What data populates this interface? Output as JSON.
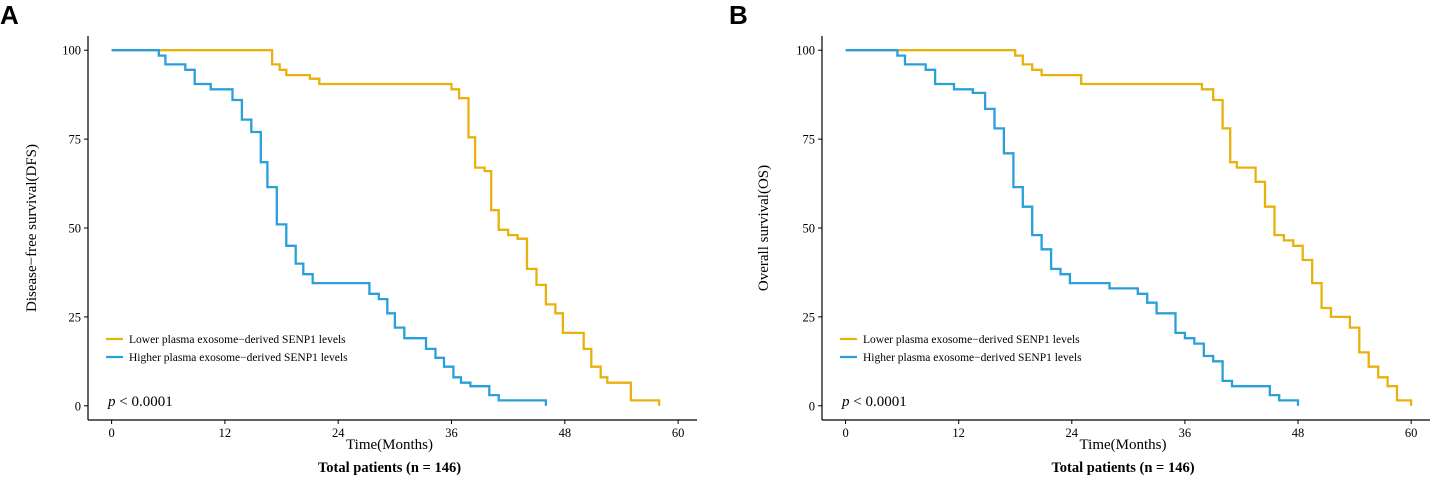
{
  "figure": {
    "p_value_symbol": "p",
    "p_value_text": "< 0.0001",
    "colors": {
      "lower": "#E8B10E",
      "higher": "#2AA0DA",
      "axis": "#000000"
    }
  },
  "chart_data": [
    {
      "type": "line",
      "subtype": "kaplan-meier step",
      "panel_label": "A",
      "ylabel": "Disease−free survival(DFS)",
      "xlabel": "Time(Months)",
      "caption": "Total patients (n = 146)",
      "xlim": [
        -2.5,
        62
      ],
      "ylim": [
        -4,
        104
      ],
      "xticks": [
        0,
        12,
        24,
        36,
        48,
        60
      ],
      "yticks": [
        0,
        25,
        50,
        75,
        100
      ],
      "legend_position": "lower-left",
      "series": [
        {
          "name": "Lower plasma exosome−derived SENP1 levels",
          "color_key": "lower",
          "points": [
            [
              0,
              100
            ],
            [
              17,
              100
            ],
            [
              17,
              96
            ],
            [
              17.8,
              96
            ],
            [
              17.8,
              94.5
            ],
            [
              18.5,
              94.5
            ],
            [
              18.5,
              93
            ],
            [
              21,
              93
            ],
            [
              21,
              92
            ],
            [
              22,
              92
            ],
            [
              22,
              90.5
            ],
            [
              36,
              90.5
            ],
            [
              36,
              89
            ],
            [
              36.8,
              89
            ],
            [
              36.8,
              86.5
            ],
            [
              37.8,
              86.5
            ],
            [
              37.8,
              75.5
            ],
            [
              38.5,
              75.5
            ],
            [
              38.5,
              67
            ],
            [
              39.5,
              67
            ],
            [
              39.5,
              66
            ],
            [
              40.2,
              66
            ],
            [
              40.2,
              55
            ],
            [
              41,
              55
            ],
            [
              41,
              49.5
            ],
            [
              42,
              49.5
            ],
            [
              42,
              48
            ],
            [
              43,
              48
            ],
            [
              43,
              47
            ],
            [
              44,
              47
            ],
            [
              44,
              38.5
            ],
            [
              45,
              38.5
            ],
            [
              45,
              34
            ],
            [
              46,
              34
            ],
            [
              46,
              28.5
            ],
            [
              47,
              28.5
            ],
            [
              47,
              26
            ],
            [
              47.8,
              26
            ],
            [
              47.8,
              20.5
            ],
            [
              50,
              20.5
            ],
            [
              50,
              16
            ],
            [
              50.8,
              16
            ],
            [
              50.8,
              11
            ],
            [
              51.8,
              11
            ],
            [
              51.8,
              8
            ],
            [
              52.5,
              8
            ],
            [
              52.5,
              6.5
            ],
            [
              55,
              6.5
            ],
            [
              55,
              1.5
            ],
            [
              58,
              1.5
            ],
            [
              58,
              0
            ]
          ]
        },
        {
          "name": "Higher plasma exosome−derived SENP1 levels",
          "color_key": "higher",
          "points": [
            [
              0,
              100
            ],
            [
              5,
              100
            ],
            [
              5,
              98.5
            ],
            [
              5.7,
              98.5
            ],
            [
              5.7,
              96
            ],
            [
              7.8,
              96
            ],
            [
              7.8,
              94.5
            ],
            [
              8.8,
              94.5
            ],
            [
              8.8,
              90.5
            ],
            [
              10.5,
              90.5
            ],
            [
              10.5,
              89
            ],
            [
              12.8,
              89
            ],
            [
              12.8,
              86
            ],
            [
              13.8,
              86
            ],
            [
              13.8,
              80.5
            ],
            [
              14.8,
              80.5
            ],
            [
              14.8,
              77
            ],
            [
              15.8,
              77
            ],
            [
              15.8,
              68.5
            ],
            [
              16.5,
              68.5
            ],
            [
              16.5,
              61.5
            ],
            [
              17.5,
              61.5
            ],
            [
              17.5,
              51
            ],
            [
              18.5,
              51
            ],
            [
              18.5,
              45
            ],
            [
              19.5,
              45
            ],
            [
              19.5,
              40
            ],
            [
              20.3,
              40
            ],
            [
              20.3,
              37
            ],
            [
              21.3,
              37
            ],
            [
              21.3,
              34.5
            ],
            [
              27.3,
              34.5
            ],
            [
              27.3,
              31.5
            ],
            [
              28.3,
              31.5
            ],
            [
              28.3,
              30
            ],
            [
              29.2,
              30
            ],
            [
              29.2,
              26
            ],
            [
              30,
              26
            ],
            [
              30,
              22
            ],
            [
              31,
              22
            ],
            [
              31,
              19
            ],
            [
              33.3,
              19
            ],
            [
              33.3,
              16
            ],
            [
              34.3,
              16
            ],
            [
              34.3,
              13.5
            ],
            [
              35.2,
              13.5
            ],
            [
              35.2,
              11
            ],
            [
              36.2,
              11
            ],
            [
              36.2,
              8
            ],
            [
              37,
              8
            ],
            [
              37,
              6.5
            ],
            [
              38,
              6.5
            ],
            [
              38,
              5.5
            ],
            [
              40,
              5.5
            ],
            [
              40,
              3
            ],
            [
              41,
              3
            ],
            [
              41,
              1.5
            ],
            [
              46,
              1.5
            ],
            [
              46,
              0
            ]
          ]
        }
      ]
    },
    {
      "type": "line",
      "subtype": "kaplan-meier step",
      "panel_label": "B",
      "ylabel": "Overall survival(OS)",
      "xlabel": "Time(Months)",
      "caption": "Total patients (n = 146)",
      "xlim": [
        -2.5,
        62
      ],
      "ylim": [
        -4,
        104
      ],
      "xticks": [
        0,
        12,
        24,
        36,
        48,
        60
      ],
      "yticks": [
        0,
        25,
        50,
        75,
        100
      ],
      "legend_position": "lower-left",
      "series": [
        {
          "name": "Lower plasma exosome−derived SENP1 levels",
          "color_key": "lower",
          "points": [
            [
              0,
              100
            ],
            [
              18,
              100
            ],
            [
              18,
              98.5
            ],
            [
              18.8,
              98.5
            ],
            [
              18.8,
              96
            ],
            [
              19.8,
              96
            ],
            [
              19.8,
              94.5
            ],
            [
              20.8,
              94.5
            ],
            [
              20.8,
              93
            ],
            [
              25,
              93
            ],
            [
              25,
              90.5
            ],
            [
              37.8,
              90.5
            ],
            [
              37.8,
              89
            ],
            [
              39,
              89
            ],
            [
              39,
              86
            ],
            [
              40,
              86
            ],
            [
              40,
              78
            ],
            [
              40.8,
              78
            ],
            [
              40.8,
              68.5
            ],
            [
              41.5,
              68.5
            ],
            [
              41.5,
              67
            ],
            [
              43.5,
              67
            ],
            [
              43.5,
              63
            ],
            [
              44.5,
              63
            ],
            [
              44.5,
              56
            ],
            [
              45.5,
              56
            ],
            [
              45.5,
              48
            ],
            [
              46.5,
              48
            ],
            [
              46.5,
              46.5
            ],
            [
              47.5,
              46.5
            ],
            [
              47.5,
              45
            ],
            [
              48.5,
              45
            ],
            [
              48.5,
              41
            ],
            [
              49.5,
              41
            ],
            [
              49.5,
              34.5
            ],
            [
              50.5,
              34.5
            ],
            [
              50.5,
              27.5
            ],
            [
              51.5,
              27.5
            ],
            [
              51.5,
              25
            ],
            [
              53.5,
              25
            ],
            [
              53.5,
              22
            ],
            [
              54.5,
              22
            ],
            [
              54.5,
              15
            ],
            [
              55.5,
              15
            ],
            [
              55.5,
              11
            ],
            [
              56.5,
              11
            ],
            [
              56.5,
              8
            ],
            [
              57.5,
              8
            ],
            [
              57.5,
              5.5
            ],
            [
              58.5,
              5.5
            ],
            [
              58.5,
              1.5
            ],
            [
              60,
              1.5
            ],
            [
              60,
              0
            ]
          ]
        },
        {
          "name": "Higher plasma exosome−derived SENP1 levels",
          "color_key": "higher",
          "points": [
            [
              0,
              100
            ],
            [
              5.5,
              100
            ],
            [
              5.5,
              98.5
            ],
            [
              6.3,
              98.5
            ],
            [
              6.3,
              96
            ],
            [
              8.5,
              96
            ],
            [
              8.5,
              94.5
            ],
            [
              9.5,
              94.5
            ],
            [
              9.5,
              90.5
            ],
            [
              11.5,
              90.5
            ],
            [
              11.5,
              89
            ],
            [
              13.5,
              89
            ],
            [
              13.5,
              88
            ],
            [
              14.8,
              88
            ],
            [
              14.8,
              83.5
            ],
            [
              15.8,
              83.5
            ],
            [
              15.8,
              78
            ],
            [
              16.8,
              78
            ],
            [
              16.8,
              71
            ],
            [
              17.8,
              71
            ],
            [
              17.8,
              61.5
            ],
            [
              18.8,
              61.5
            ],
            [
              18.8,
              56
            ],
            [
              19.8,
              56
            ],
            [
              19.8,
              48
            ],
            [
              20.8,
              48
            ],
            [
              20.8,
              44
            ],
            [
              21.8,
              44
            ],
            [
              21.8,
              38.5
            ],
            [
              22.8,
              38.5
            ],
            [
              22.8,
              37
            ],
            [
              23.8,
              37
            ],
            [
              23.8,
              34.5
            ],
            [
              28,
              34.5
            ],
            [
              28,
              33
            ],
            [
              31,
              33
            ],
            [
              31,
              31.5
            ],
            [
              32,
              31.5
            ],
            [
              32,
              29
            ],
            [
              33,
              29
            ],
            [
              33,
              26
            ],
            [
              35,
              26
            ],
            [
              35,
              20.5
            ],
            [
              36,
              20.5
            ],
            [
              36,
              19
            ],
            [
              37,
              19
            ],
            [
              37,
              17.5
            ],
            [
              38,
              17.5
            ],
            [
              38,
              14
            ],
            [
              39,
              14
            ],
            [
              39,
              12.5
            ],
            [
              40,
              12.5
            ],
            [
              40,
              7
            ],
            [
              41,
              7
            ],
            [
              41,
              5.5
            ],
            [
              45,
              5.5
            ],
            [
              45,
              3
            ],
            [
              46,
              3
            ],
            [
              46,
              1.5
            ],
            [
              48,
              1.5
            ],
            [
              48,
              0
            ]
          ]
        }
      ]
    }
  ]
}
